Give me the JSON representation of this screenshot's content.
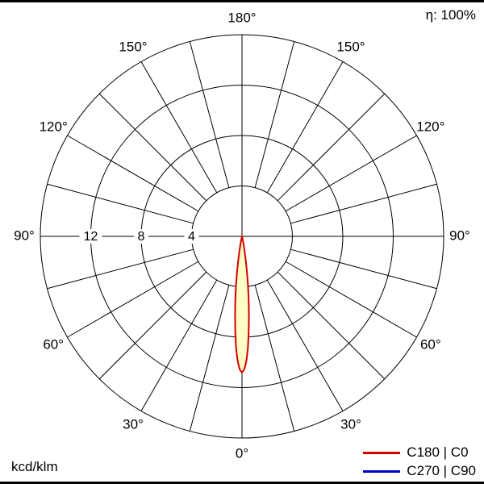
{
  "frame": {
    "eta_label": "η: 100%",
    "unit_label": "kcd/klm"
  },
  "legend": {
    "items": [
      {
        "label": "C180 | C0",
        "color": "#d40000"
      },
      {
        "label": "C270 | C90",
        "color": "#0000c8"
      }
    ]
  },
  "chart_data": {
    "type": "polar",
    "unit": "kcd/klm",
    "efficiency_label": "η: 100%",
    "angle_label_ticks_deg": [
      0,
      30,
      60,
      90,
      120,
      150,
      180
    ],
    "angle_grid_step_deg": 15,
    "radial_ticks": [
      4,
      8,
      12
    ],
    "r_max": 16,
    "grid_color": "#000000",
    "background_color": "#ffffff",
    "legend_position": "bottom-right",
    "series": [
      {
        "name": "C180 | C0",
        "color": "#d40000",
        "fill": "#ffffc6",
        "symmetric": true,
        "points": [
          {
            "gamma": 0,
            "value": 10.8
          },
          {
            "gamma": 1,
            "value": 10.55
          },
          {
            "gamma": 2,
            "value": 9.9
          },
          {
            "gamma": 3,
            "value": 8.9
          },
          {
            "gamma": 4,
            "value": 7.6
          },
          {
            "gamma": 5,
            "value": 6.3
          },
          {
            "gamma": 6,
            "value": 5.1
          },
          {
            "gamma": 7,
            "value": 3.9
          },
          {
            "gamma": 8,
            "value": 2.8
          },
          {
            "gamma": 9,
            "value": 1.9
          },
          {
            "gamma": 10,
            "value": 1.15
          },
          {
            "gamma": 11,
            "value": 0.6
          },
          {
            "gamma": 12,
            "value": 0.3
          },
          {
            "gamma": 13,
            "value": 0.12
          },
          {
            "gamma": 14,
            "value": 0
          }
        ]
      },
      {
        "name": "C270 | C90",
        "color": "#0000c8",
        "visible_in_plot": false
      }
    ]
  }
}
